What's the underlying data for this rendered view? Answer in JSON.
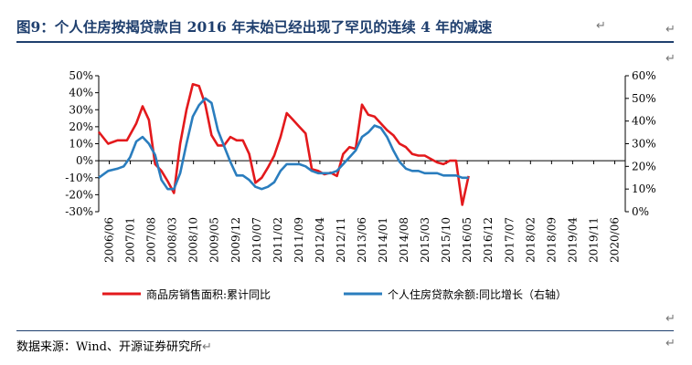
{
  "page": {
    "title": "图9：个人住房按揭贷款自 2016 年末始已经出现了罕见的连续 4 年的减速",
    "source": "数据来源：Wind、开源证券研究所",
    "para_mark": "↵"
  },
  "chart_data": {
    "type": "line",
    "title": "",
    "xlabel": "",
    "ylabel": "",
    "x_ticks": [
      "2006/06",
      "2007/01",
      "2007/08",
      "2008/03",
      "2008/10",
      "2009/05",
      "2009/12",
      "2010/07",
      "2011/02",
      "2011/09",
      "2012/04",
      "2012/11",
      "2013/06",
      "2014/01",
      "2014/08",
      "2015/03",
      "2015/10",
      "2016/05",
      "2016/12",
      "2017/07",
      "2018/02",
      "2018/09",
      "2019/04",
      "2019/11",
      "2020/06"
    ],
    "x_range": [
      0,
      168
    ],
    "y_left": {
      "ticks": [
        "50%",
        "40%",
        "30%",
        "20%",
        "10%",
        "0%",
        "-10%",
        "-20%",
        "-30%"
      ],
      "range": [
        -30,
        50
      ]
    },
    "y_right": {
      "ticks": [
        "60%",
        "50%",
        "40%",
        "30%",
        "20%",
        "10%",
        "0%"
      ],
      "range": [
        0,
        60
      ]
    },
    "grid": false,
    "legend_position": "bottom",
    "series": [
      {
        "name": "商品房销售面积:累计同比",
        "axis": "left",
        "color": "#e3191c",
        "points": [
          [
            0,
            17
          ],
          [
            3,
            10
          ],
          [
            6,
            12
          ],
          [
            9,
            12
          ],
          [
            12,
            22
          ],
          [
            14,
            32
          ],
          [
            16,
            24
          ],
          [
            18,
            -2
          ],
          [
            20,
            -6
          ],
          [
            22,
            -12
          ],
          [
            24,
            -19
          ],
          [
            26,
            10
          ],
          [
            28,
            30
          ],
          [
            30,
            45
          ],
          [
            32,
            44
          ],
          [
            34,
            33
          ],
          [
            36,
            15
          ],
          [
            38,
            9
          ],
          [
            40,
            9
          ],
          [
            42,
            14
          ],
          [
            44,
            12
          ],
          [
            46,
            12
          ],
          [
            48,
            4
          ],
          [
            50,
            -13
          ],
          [
            52,
            -10
          ],
          [
            54,
            -4
          ],
          [
            56,
            3
          ],
          [
            58,
            14
          ],
          [
            60,
            28
          ],
          [
            62,
            24
          ],
          [
            64,
            20
          ],
          [
            66,
            16
          ],
          [
            68,
            -5
          ],
          [
            70,
            -6
          ],
          [
            72,
            -8
          ],
          [
            74,
            -7
          ],
          [
            76,
            -9
          ],
          [
            78,
            4
          ],
          [
            80,
            8
          ],
          [
            82,
            7
          ],
          [
            84,
            33
          ],
          [
            86,
            27
          ],
          [
            88,
            26
          ],
          [
            90,
            22
          ],
          [
            92,
            18
          ],
          [
            94,
            15
          ],
          [
            96,
            10
          ],
          [
            98,
            8
          ],
          [
            100,
            4
          ],
          [
            102,
            3
          ],
          [
            104,
            3
          ],
          [
            106,
            1
          ],
          [
            108,
            -1
          ],
          [
            110,
            -2
          ],
          [
            112,
            0
          ],
          [
            114,
            0
          ],
          [
            116,
            -26
          ],
          [
            118,
            -9
          ]
        ]
      },
      {
        "name": "个人住房贷款余额:同比增长（右轴）",
        "axis": "right",
        "color": "#2a7dbe",
        "points": [
          [
            0,
            15
          ],
          [
            3,
            18
          ],
          [
            6,
            19
          ],
          [
            8,
            20
          ],
          [
            10,
            24
          ],
          [
            12,
            31
          ],
          [
            14,
            33
          ],
          [
            16,
            30
          ],
          [
            18,
            25
          ],
          [
            20,
            14
          ],
          [
            22,
            10
          ],
          [
            24,
            10
          ],
          [
            26,
            17
          ],
          [
            28,
            30
          ],
          [
            30,
            42
          ],
          [
            32,
            47
          ],
          [
            34,
            50
          ],
          [
            36,
            48
          ],
          [
            38,
            36
          ],
          [
            40,
            29
          ],
          [
            42,
            22
          ],
          [
            44,
            16
          ],
          [
            46,
            16
          ],
          [
            48,
            14
          ],
          [
            50,
            11
          ],
          [
            52,
            10
          ],
          [
            54,
            11
          ],
          [
            56,
            13
          ],
          [
            58,
            18
          ],
          [
            60,
            21
          ],
          [
            62,
            21
          ],
          [
            64,
            21
          ],
          [
            66,
            20
          ],
          [
            68,
            18
          ],
          [
            70,
            17
          ],
          [
            72,
            17
          ],
          [
            74,
            17
          ],
          [
            76,
            18
          ],
          [
            78,
            21
          ],
          [
            80,
            24
          ],
          [
            82,
            27
          ],
          [
            84,
            33
          ],
          [
            86,
            35
          ],
          [
            88,
            38
          ],
          [
            90,
            37
          ],
          [
            92,
            33
          ],
          [
            94,
            27
          ],
          [
            96,
            22
          ],
          [
            98,
            19
          ],
          [
            100,
            18
          ],
          [
            102,
            18
          ],
          [
            104,
            17
          ],
          [
            106,
            17
          ],
          [
            108,
            17
          ],
          [
            110,
            16
          ],
          [
            112,
            16
          ],
          [
            114,
            16
          ],
          [
            116,
            15
          ],
          [
            118,
            15
          ]
        ]
      }
    ]
  }
}
